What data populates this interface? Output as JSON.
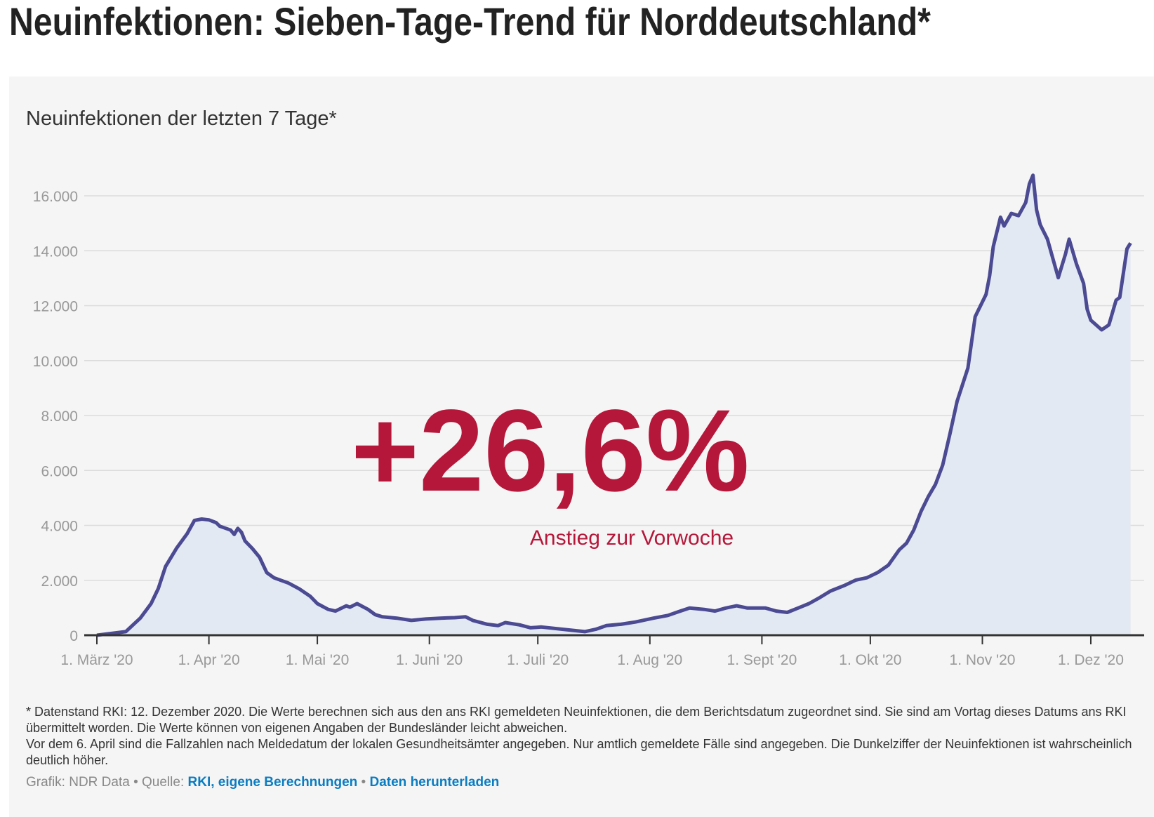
{
  "title": "Neuinfektionen: Sieben-Tage-Trend für Norddeutschland*",
  "highlight": {
    "value": "+26,6%",
    "label": "Anstieg zur Vorwoche",
    "color": "#b5173a"
  },
  "footnote": [
    "* Datenstand RKI: 12. Dezember 2020. Die Werte berechnen sich aus den ans RKI gemeldeten Neuinfektionen, die dem Berichtsdatum zugeordnet sind. Sie sind am Vortag dieses Datums ans RKI übermittelt worden. Die Werte können von eigenen Angaben der Bundesländer leicht abweichen.",
    "Vor dem 6. April sind die Fallzahlen nach Meldedatum der lokalen Gesundheitsämter angegeben. Nur amtlich gemeldete Fälle sind angegeben. Die Dunkelziffer der Neuinfektionen ist wahrscheinlich deutlich höher."
  ],
  "source": {
    "prefix": "Grafik: NDR Data • Quelle: ",
    "link1": "RKI, eigene Berechnungen",
    "sep": " • ",
    "link2": "Daten herunterladen",
    "link_color": "#0a7cc1"
  },
  "chart_data": {
    "type": "area",
    "title": "Neuinfektionen der letzten 7 Tage*",
    "xlabel": "",
    "ylabel": "",
    "ylim": [
      0,
      16000
    ],
    "yticks": [
      0,
      2000,
      4000,
      6000,
      8000,
      10000,
      12000,
      14000,
      16000
    ],
    "ytick_labels": [
      "0",
      "2.000",
      "4.000",
      "6.000",
      "8.000",
      "10.000",
      "12.000",
      "14.000",
      "16.000"
    ],
    "xticks": [
      "2020-03-01",
      "2020-04-01",
      "2020-05-01",
      "2020-06-01",
      "2020-07-01",
      "2020-08-01",
      "2020-09-01",
      "2020-10-01",
      "2020-11-01",
      "2020-12-01"
    ],
    "xtick_labels": [
      "1. März '20",
      "1. Apr '20",
      "1. Mai '20",
      "1. Juni '20",
      "1. Juli '20",
      "1. Aug '20",
      "1. Sept '20",
      "1. Okt '20",
      "1. Nov '20",
      "1. Dez '20"
    ],
    "grid": true,
    "line_color": "#4b4a92",
    "fill_color": "#e2e9f2",
    "points": [
      [
        "2020-03-01",
        0
      ],
      [
        "2020-03-09",
        130
      ],
      [
        "2020-03-13",
        620
      ],
      [
        "2020-03-16",
        1150
      ],
      [
        "2020-03-18",
        1700
      ],
      [
        "2020-03-20",
        2500
      ],
      [
        "2020-03-23",
        3160
      ],
      [
        "2020-03-26",
        3700
      ],
      [
        "2020-03-28",
        4180
      ],
      [
        "2020-03-30",
        4230
      ],
      [
        "2020-04-01",
        4200
      ],
      [
        "2020-04-03",
        4100
      ],
      [
        "2020-04-04",
        3970
      ],
      [
        "2020-04-07",
        3830
      ],
      [
        "2020-04-08",
        3670
      ],
      [
        "2020-04-09",
        3890
      ],
      [
        "2020-04-10",
        3750
      ],
      [
        "2020-04-11",
        3430
      ],
      [
        "2020-04-13",
        3160
      ],
      [
        "2020-04-15",
        2840
      ],
      [
        "2020-04-17",
        2280
      ],
      [
        "2020-04-19",
        2090
      ],
      [
        "2020-04-23",
        1900
      ],
      [
        "2020-04-26",
        1690
      ],
      [
        "2020-04-29",
        1420
      ],
      [
        "2020-05-01",
        1150
      ],
      [
        "2020-05-04",
        940
      ],
      [
        "2020-05-06",
        880
      ],
      [
        "2020-05-09",
        1070
      ],
      [
        "2020-05-10",
        1020
      ],
      [
        "2020-05-12",
        1150
      ],
      [
        "2020-05-15",
        940
      ],
      [
        "2020-05-17",
        750
      ],
      [
        "2020-05-19",
        670
      ],
      [
        "2020-05-23",
        620
      ],
      [
        "2020-05-27",
        540
      ],
      [
        "2020-05-31",
        590
      ],
      [
        "2020-06-04",
        620
      ],
      [
        "2020-06-08",
        640
      ],
      [
        "2020-06-11",
        670
      ],
      [
        "2020-06-13",
        540
      ],
      [
        "2020-06-17",
        400
      ],
      [
        "2020-06-20",
        350
      ],
      [
        "2020-06-22",
        460
      ],
      [
        "2020-06-26",
        375
      ],
      [
        "2020-06-29",
        270
      ],
      [
        "2020-07-02",
        300
      ],
      [
        "2020-07-08",
        215
      ],
      [
        "2020-07-14",
        130
      ],
      [
        "2020-07-17",
        215
      ],
      [
        "2020-07-20",
        350
      ],
      [
        "2020-07-24",
        400
      ],
      [
        "2020-07-28",
        480
      ],
      [
        "2020-08-02",
        620
      ],
      [
        "2020-08-06",
        720
      ],
      [
        "2020-08-09",
        860
      ],
      [
        "2020-08-12",
        990
      ],
      [
        "2020-08-16",
        940
      ],
      [
        "2020-08-19",
        880
      ],
      [
        "2020-08-22",
        990
      ],
      [
        "2020-08-25",
        1070
      ],
      [
        "2020-08-28",
        990
      ],
      [
        "2020-09-02",
        990
      ],
      [
        "2020-09-05",
        880
      ],
      [
        "2020-09-08",
        830
      ],
      [
        "2020-09-11",
        990
      ],
      [
        "2020-09-14",
        1150
      ],
      [
        "2020-09-17",
        1370
      ],
      [
        "2020-09-20",
        1610
      ],
      [
        "2020-09-24",
        1820
      ],
      [
        "2020-09-27",
        2010
      ],
      [
        "2020-09-30",
        2090
      ],
      [
        "2020-10-03",
        2280
      ],
      [
        "2020-10-06",
        2550
      ],
      [
        "2020-10-09",
        3110
      ],
      [
        "2020-10-11",
        3350
      ],
      [
        "2020-10-13",
        3830
      ],
      [
        "2020-10-15",
        4500
      ],
      [
        "2020-10-17",
        5040
      ],
      [
        "2020-10-19",
        5490
      ],
      [
        "2020-10-21",
        6190
      ],
      [
        "2020-10-23",
        7320
      ],
      [
        "2020-10-25",
        8520
      ],
      [
        "2020-10-28",
        9730
      ],
      [
        "2020-10-30",
        11600
      ],
      [
        "2020-11-02",
        12410
      ],
      [
        "2020-11-03",
        13080
      ],
      [
        "2020-11-04",
        14150
      ],
      [
        "2020-11-06",
        15220
      ],
      [
        "2020-11-07",
        14900
      ],
      [
        "2020-11-09",
        15360
      ],
      [
        "2020-11-11",
        15280
      ],
      [
        "2020-11-13",
        15760
      ],
      [
        "2020-11-14",
        16430
      ],
      [
        "2020-11-15",
        16750
      ],
      [
        "2020-11-16",
        15490
      ],
      [
        "2020-11-17",
        14950
      ],
      [
        "2020-11-19",
        14420
      ],
      [
        "2020-11-22",
        13020
      ],
      [
        "2020-11-24",
        13880
      ],
      [
        "2020-11-25",
        14420
      ],
      [
        "2020-11-27",
        13530
      ],
      [
        "2020-11-29",
        12810
      ],
      [
        "2020-11-30",
        11870
      ],
      [
        "2020-12-01",
        11470
      ],
      [
        "2020-12-04",
        11120
      ],
      [
        "2020-12-06",
        11300
      ],
      [
        "2020-12-08",
        12200
      ],
      [
        "2020-12-09",
        12300
      ],
      [
        "2020-12-11",
        14070
      ],
      [
        "2020-12-12",
        14280
      ]
    ]
  }
}
